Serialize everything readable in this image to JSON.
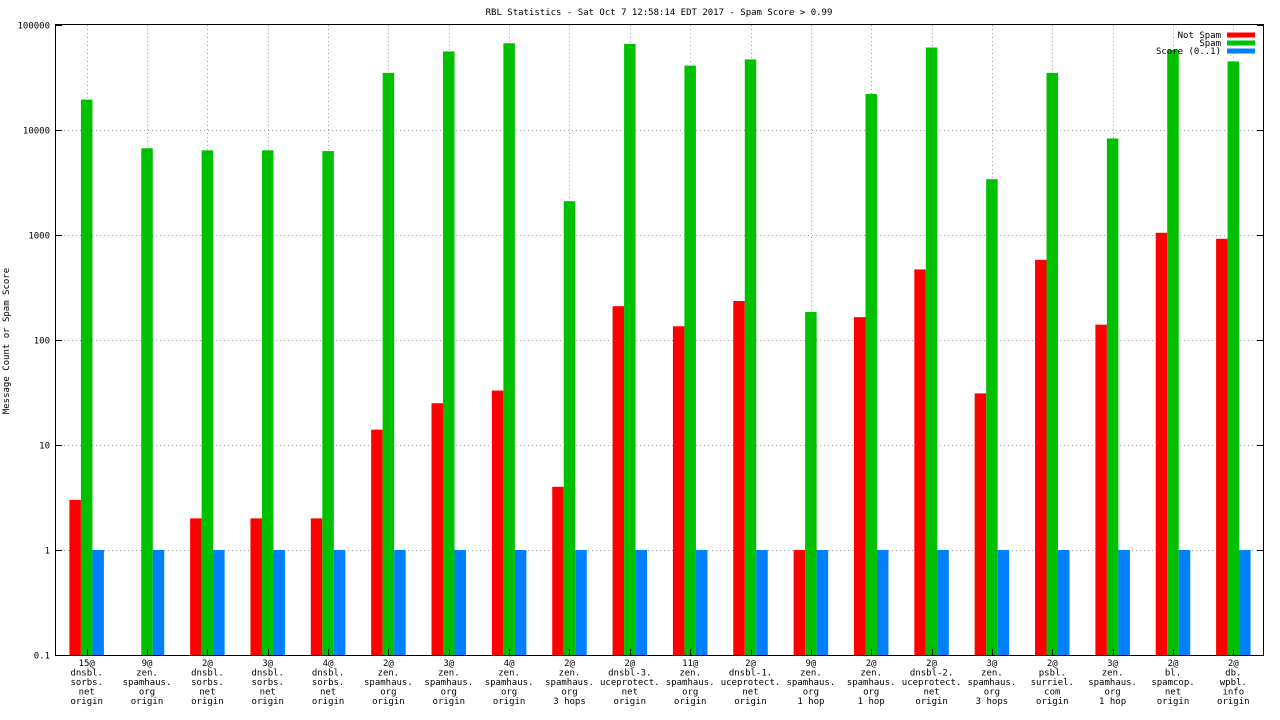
{
  "chart_data": {
    "type": "bar",
    "title": "RBL Statistics - Sat Oct  7 12:58:14 EDT 2017 - Spam Score > 0.99",
    "xlabel": "",
    "ylabel": "Message Count or Spam Score",
    "yscale": "log",
    "ylim": [
      0.1,
      100000
    ],
    "yticks": [
      "0.1",
      "1",
      "10",
      "100",
      "1000",
      "10000",
      "100000"
    ],
    "grid": true,
    "legend_position": "top-right",
    "categories": [
      [
        "15@",
        "dnsbl.",
        "sorbs.",
        "net",
        "origin"
      ],
      [
        "9@",
        "zen.",
        "spamhaus.",
        "org",
        "origin"
      ],
      [
        "2@",
        "dnsbl.",
        "sorbs.",
        "net",
        "origin"
      ],
      [
        "3@",
        "dnsbl.",
        "sorbs.",
        "net",
        "origin"
      ],
      [
        "4@",
        "dnsbl.",
        "sorbs.",
        "net",
        "origin"
      ],
      [
        "2@",
        "zen.",
        "spamhaus.",
        "org",
        "origin"
      ],
      [
        "3@",
        "zen.",
        "spamhaus.",
        "org",
        "origin"
      ],
      [
        "4@",
        "zen.",
        "spamhaus.",
        "org",
        "origin"
      ],
      [
        "2@",
        "zen.",
        "spamhaus.",
        "org",
        "3 hops"
      ],
      [
        "2@",
        "dnsbl-3.",
        "uceprotect.",
        "net",
        "origin"
      ],
      [
        "11@",
        "zen.",
        "spamhaus.",
        "org",
        "origin"
      ],
      [
        "2@",
        "dnsbl-1.",
        "uceprotect.",
        "net",
        "origin"
      ],
      [
        "9@",
        "zen.",
        "spamhaus.",
        "org",
        "1 hop"
      ],
      [
        "2@",
        "zen.",
        "spamhaus.",
        "org",
        "1 hop"
      ],
      [
        "2@",
        "dnsbl-2.",
        "uceprotect.",
        "net",
        "origin"
      ],
      [
        "3@",
        "zen.",
        "spamhaus.",
        "org",
        "3 hops"
      ],
      [
        "2@",
        "psbl.",
        "surriel.",
        "com",
        "origin"
      ],
      [
        "3@",
        "zen.",
        "spamhaus.",
        "org",
        "1 hop"
      ],
      [
        "2@",
        "bl.",
        "spamcop.",
        "net",
        "origin"
      ],
      [
        "2@",
        "db.",
        "wpbl.",
        "info",
        "origin"
      ]
    ],
    "series": [
      {
        "name": "Not Spam",
        "color": "#ff0000",
        "values": [
          3,
          null,
          2,
          2,
          2,
          14,
          25,
          33,
          4,
          210,
          135,
          235,
          1,
          165,
          470,
          31,
          580,
          140,
          1050,
          920
        ]
      },
      {
        "name": "Spam",
        "color": "#00c000",
        "values": [
          19500,
          6700,
          6400,
          6400,
          6300,
          35000,
          56000,
          67000,
          2100,
          66000,
          41000,
          47000,
          185,
          22000,
          61000,
          3400,
          35000,
          8300,
          58000,
          45000
        ]
      },
      {
        "name": "Score (0..1)",
        "color": "#0080ff",
        "values": [
          1,
          1,
          1,
          1,
          1,
          1,
          1,
          1,
          1,
          1,
          1,
          1,
          1,
          1,
          1,
          1,
          1,
          1,
          1,
          1
        ]
      }
    ]
  }
}
